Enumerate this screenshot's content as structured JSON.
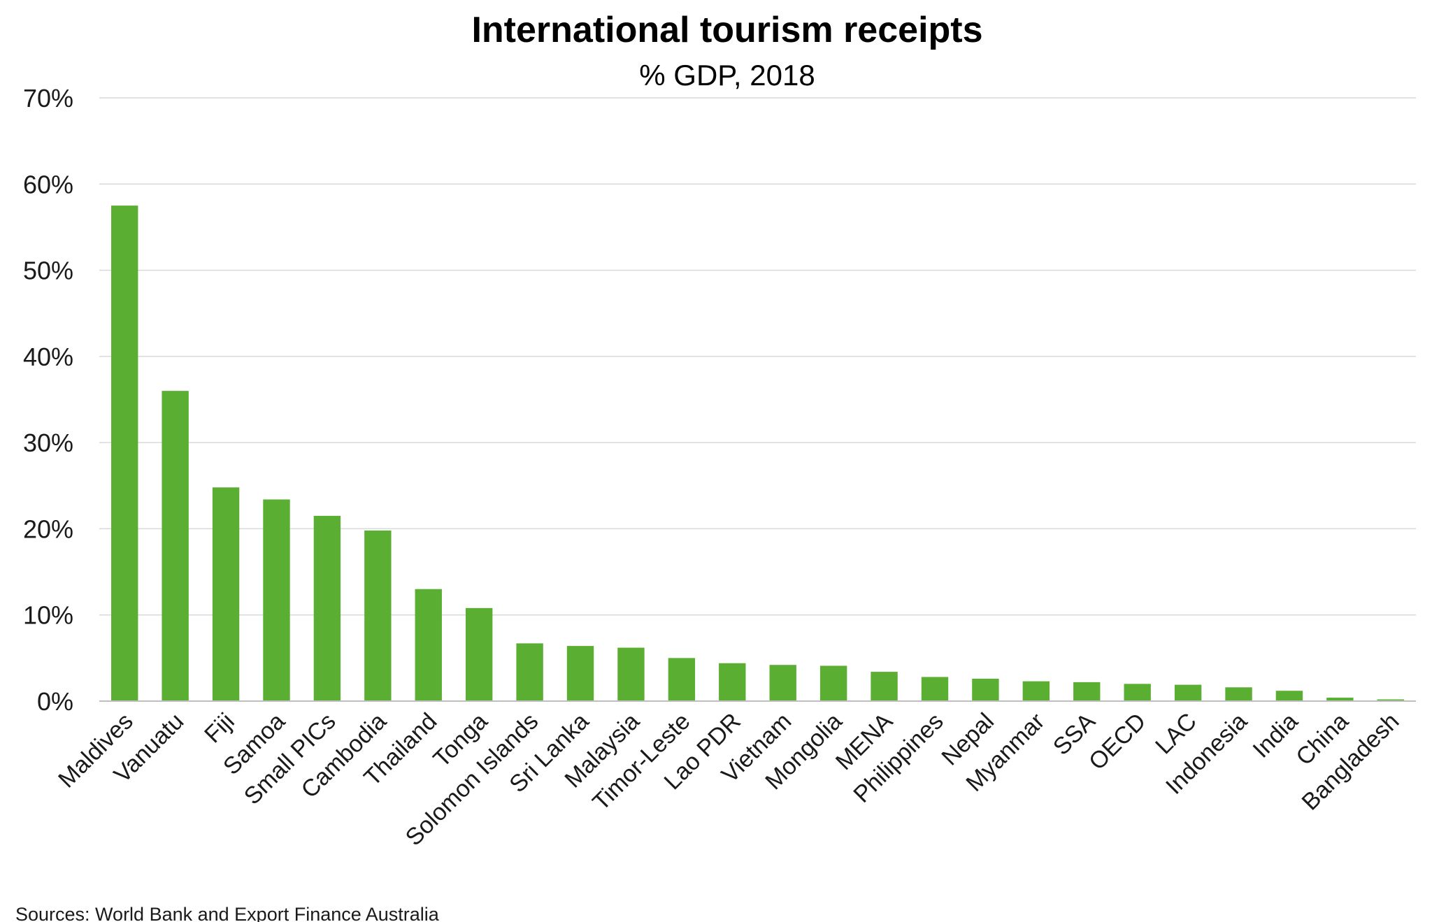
{
  "chart_data": {
    "type": "bar",
    "title": "International tourism receipts",
    "subtitle": "% GDP, 2018",
    "source": "Sources: World Bank and Export Finance Australia",
    "ylim": [
      0,
      70
    ],
    "y_ticks": [
      "0%",
      "10%",
      "20%",
      "30%",
      "40%",
      "50%",
      "60%",
      "70%"
    ],
    "y_tick_values": [
      0,
      10,
      20,
      30,
      40,
      50,
      60,
      70
    ],
    "grid": true,
    "legend": "none",
    "bar_color": "#5aaf32",
    "categories": [
      "Maldives",
      "Vanuatu",
      "Fiji",
      "Samoa",
      "Small PICs",
      "Cambodia",
      "Thailand",
      "Tonga",
      "Solomon Islands",
      "Sri Lanka",
      "Malaysia",
      "Timor-Leste",
      "Lao PDR",
      "Vietnam",
      "Mongolia",
      "MENA",
      "Philippines",
      "Nepal",
      "Myanmar",
      "SSA",
      "OECD",
      "LAC",
      "Indonesia",
      "India",
      "China",
      "Bangladesh"
    ],
    "values": [
      57.5,
      36,
      24.8,
      23.4,
      21.5,
      19.8,
      13,
      10.8,
      6.7,
      6.4,
      6.2,
      5.0,
      4.4,
      4.2,
      4.1,
      3.4,
      2.8,
      2.6,
      2.3,
      2.2,
      2.0,
      1.9,
      1.6,
      1.2,
      0.4,
      0.2
    ]
  }
}
